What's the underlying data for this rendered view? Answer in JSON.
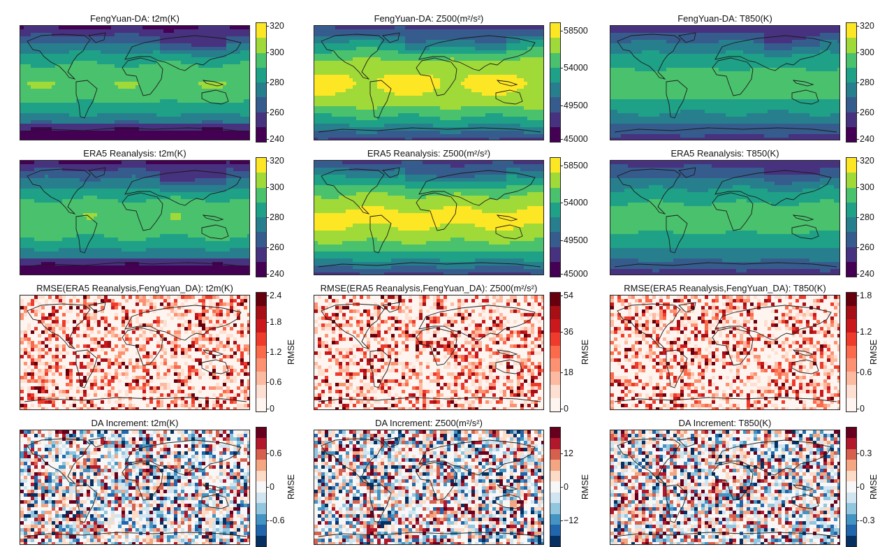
{
  "chart_data": [
    {
      "type": "heatmap",
      "row": 0,
      "col": 0,
      "title": "FengYuan-DA: t2m(K)",
      "field": "t2m",
      "colorbar": {
        "ticks": [
          "320",
          "300",
          "280",
          "260",
          "240"
        ],
        "range": [
          230,
          325
        ],
        "palette": "viridis"
      }
    },
    {
      "type": "heatmap",
      "row": 0,
      "col": 1,
      "title": "FengYuan-DA: Z500(m²/s²)",
      "field": "z500",
      "colorbar": {
        "ticks": [
          "58500",
          "54000",
          "49500",
          "45000"
        ],
        "range": [
          45000,
          60000
        ],
        "palette": "viridis"
      }
    },
    {
      "type": "heatmap",
      "row": 0,
      "col": 2,
      "title": "FengYuan-DA: T850(K)",
      "field": "t850",
      "colorbar": {
        "ticks": [
          "320",
          "300",
          "280",
          "260",
          "240"
        ],
        "range": [
          230,
          325
        ],
        "palette": "viridis"
      }
    },
    {
      "type": "heatmap",
      "row": 1,
      "col": 0,
      "title": "ERA5 Reanalysis: t2m(K)",
      "field": "t2m",
      "colorbar": {
        "ticks": [
          "320",
          "300",
          "280",
          "260",
          "240"
        ],
        "range": [
          230,
          325
        ],
        "palette": "viridis"
      }
    },
    {
      "type": "heatmap",
      "row": 1,
      "col": 1,
      "title": "ERA5 Reanalysis: Z500(m²/s²)",
      "field": "z500",
      "colorbar": {
        "ticks": [
          "58500",
          "54000",
          "49500",
          "45000"
        ],
        "range": [
          45000,
          60000
        ],
        "palette": "viridis"
      }
    },
    {
      "type": "heatmap",
      "row": 1,
      "col": 2,
      "title": "ERA5 Reanalysis: T850(K)",
      "field": "t850",
      "colorbar": {
        "ticks": [
          "320",
          "300",
          "280",
          "260",
          "240"
        ],
        "range": [
          230,
          325
        ],
        "palette": "viridis"
      }
    },
    {
      "type": "heatmap",
      "row": 2,
      "col": 0,
      "title": "RMSE(ERA5 Reanalysis,FengYuan_DA): t2m(K)",
      "field": "rmse",
      "colorbar": {
        "ticks": [
          "2.4",
          "1.8",
          "1.2",
          "0.6",
          "0"
        ],
        "range": [
          0,
          2.7
        ],
        "label": "RMSE",
        "palette": "reds"
      }
    },
    {
      "type": "heatmap",
      "row": 2,
      "col": 1,
      "title": "RMSE(ERA5 Reanalysis,FengYuan_DA): Z500(m²/s²)",
      "field": "rmse",
      "colorbar": {
        "ticks": [
          "54",
          "36",
          "18",
          "0"
        ],
        "range": [
          0,
          60
        ],
        "label": "RMSE",
        "palette": "reds"
      }
    },
    {
      "type": "heatmap",
      "row": 2,
      "col": 2,
      "title": "RMSE(ERA5 Reanalysis,FengYuan_DA): T850(K)",
      "field": "rmse",
      "colorbar": {
        "ticks": [
          "1.8",
          "1.2",
          "0.6",
          "0"
        ],
        "range": [
          0,
          2.1
        ],
        "label": "RMSE",
        "palette": "reds"
      }
    },
    {
      "type": "heatmap",
      "row": 3,
      "col": 0,
      "title": "DA Increment: t2m(K)",
      "field": "increment",
      "colorbar": {
        "ticks": [
          "0.6",
          "0",
          "-0.6"
        ],
        "range": [
          -0.9,
          0.9
        ],
        "label": "RMSE",
        "palette": "rdbu"
      }
    },
    {
      "type": "heatmap",
      "row": 3,
      "col": 1,
      "title": "DA Increment: Z500(m²/s²)",
      "field": "increment",
      "colorbar": {
        "ticks": [
          "12",
          "0",
          "−12"
        ],
        "range": [
          -18,
          18
        ],
        "label": "RMSE",
        "palette": "rdbu"
      }
    },
    {
      "type": "heatmap",
      "row": 3,
      "col": 2,
      "title": "DA Increment: T850(K)",
      "field": "increment",
      "colorbar": {
        "ticks": [
          "0.3",
          "0",
          "-0.3"
        ],
        "range": [
          -0.5,
          0.5
        ],
        "label": "RMSE",
        "palette": "rdbu"
      }
    }
  ],
  "colors": {
    "viridis": [
      "#fde725",
      "#a0da39",
      "#4ac16d",
      "#1fa187",
      "#277f8e",
      "#365c8d",
      "#46327e",
      "#440154"
    ],
    "reds": [
      "#67000d",
      "#a50f15",
      "#cb181d",
      "#ef3b2c",
      "#fb6a4a",
      "#fc9272",
      "#fcbba1",
      "#fee0d2",
      "#fff5f0"
    ],
    "rdbu": [
      "#67001f",
      "#b2182b",
      "#d6604d",
      "#f4a582",
      "#fddbc7",
      "#f7f7f7",
      "#d1e5f0",
      "#92c5de",
      "#4393c3",
      "#2166ac",
      "#053061"
    ]
  }
}
